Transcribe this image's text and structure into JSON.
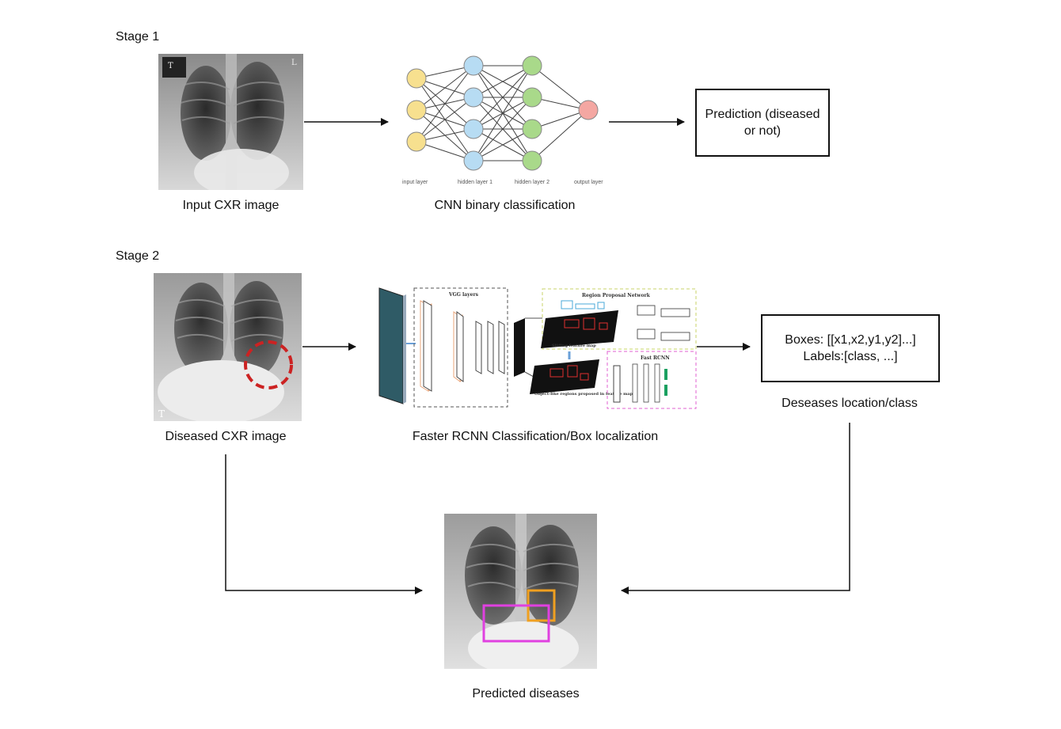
{
  "stage1": {
    "title": "Stage 1",
    "input_caption": "Input CXR image",
    "cnn_caption": "CNN binary classification",
    "nn_layers": [
      "input layer",
      "hidden layer 1",
      "hidden layer 2",
      "output layer"
    ],
    "prediction_text": "Prediction (diseased or not)"
  },
  "stage2": {
    "title": "Stage 2",
    "diseased_caption": "Diseased CXR image",
    "rcnn_caption": "Faster RCNN Classification/Box localization",
    "output_line1": "Boxes: [[x1,x2,y1,y2]...]",
    "output_line2": "Labels:[class, ...]",
    "output_caption": "Deseases location/class",
    "rcnn_labels": {
      "vgg": "VGG layers",
      "rpn": "Region Proposal Network",
      "fast": "Fast RCNN",
      "sliding": "Sliding feature map",
      "objectlike": "Object-like regions proposed in feature map"
    }
  },
  "result": {
    "caption": "Predicted diseases"
  },
  "colors": {
    "node_input": "#f7e08f",
    "node_hidden1": "#b7dcf3",
    "node_hidden2": "#a9d98a",
    "node_output": "#f4a7a2",
    "marker_circle": "#cc2222",
    "box_orange": "#f0a020",
    "box_magenta": "#e040e0"
  }
}
